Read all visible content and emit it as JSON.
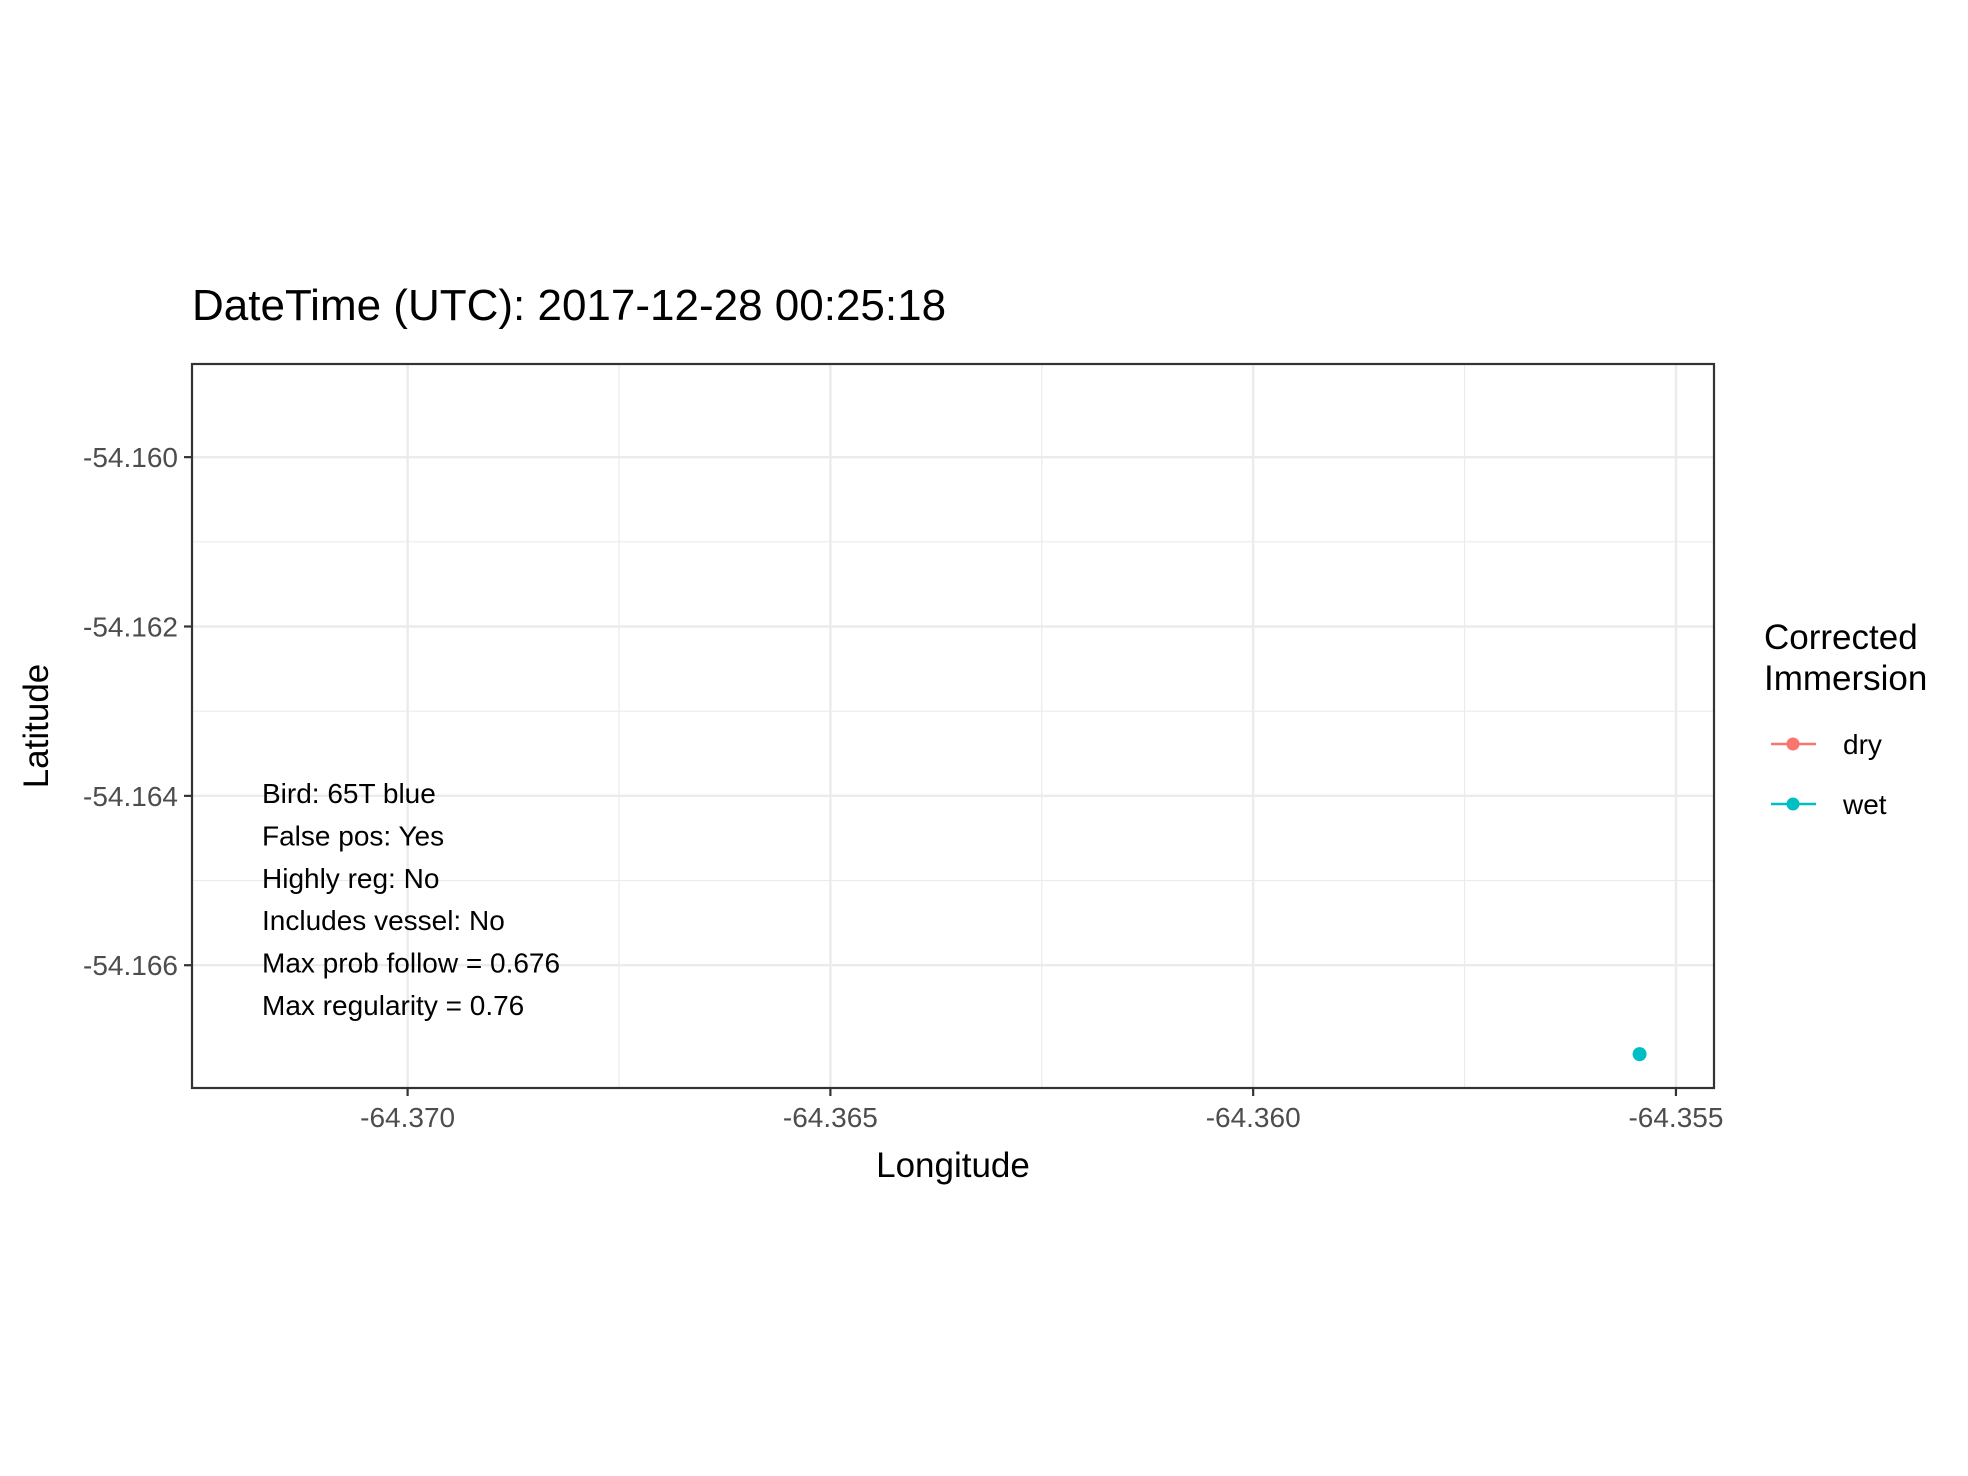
{
  "chart_data": {
    "type": "scatter",
    "title": "DateTime (UTC): 2017-12-28 00:25:18",
    "xlabel": "Longitude",
    "ylabel": "Latitude",
    "xlim": [
      -64.37255,
      -64.35455
    ],
    "ylim": [
      -54.16745,
      -54.1589
    ],
    "xticks": [
      -64.37,
      -64.365,
      -64.36,
      -64.355
    ],
    "xtick_labels": [
      "-64.370",
      "-64.365",
      "-64.360",
      "-64.355"
    ],
    "yticks": [
      -54.16,
      -54.162,
      -54.164,
      -54.166
    ],
    "ytick_labels": [
      "-54.160",
      "-54.162",
      "-54.164",
      "-54.166"
    ],
    "grid": true,
    "legend": {
      "title_lines": [
        "Corrected",
        "Immersion"
      ],
      "placement": "right",
      "entries": [
        {
          "label": "dry",
          "color": "#F8766D"
        },
        {
          "label": "wet",
          "color": "#00BFC4"
        }
      ]
    },
    "series": [
      {
        "name": "wet",
        "color": "#00BFC4",
        "points": [
          {
            "x": -64.35543,
            "y": -54.16705
          }
        ]
      }
    ],
    "annotations": [
      "Bird: 65T blue",
      "False pos: Yes",
      "Highly reg: No",
      "Includes vessel: No",
      "Max prob follow = 0.676",
      "Max regularity = 0.76"
    ]
  }
}
